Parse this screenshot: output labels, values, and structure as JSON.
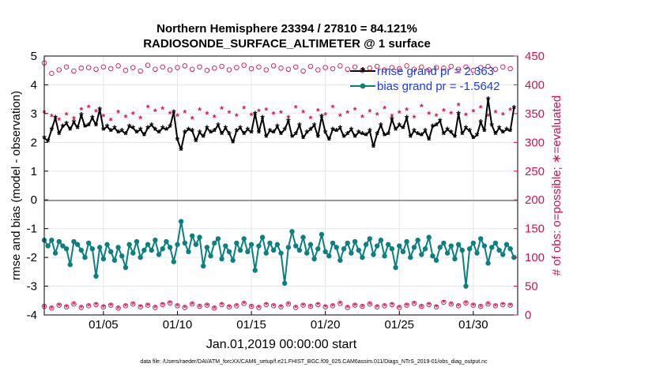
{
  "chart_data": {
    "type": "line",
    "title": "Northern Hemisphere 23394 / 27810 = 84.121%",
    "subtitle": "RADIOSONDE_SURFACE_ALTIMETER @ 1 surface",
    "xlabel": "Jan.01,2019 00:00:00 start",
    "ylabel": "rmse and bias (model - observation)",
    "ylabel_right": "# of obs: o=possible; ∗=evaluated",
    "footer": "data file: /Users/raeder/DAI/ATM_forcXX/CAM6_setup/f.e21.FHIST_BGC.f09_025.CAM6assim.011/Diags_NTrS_2019-01/obs_diag_output.nc",
    "xlim": [
      1,
      33
    ],
    "ylim": [
      -4,
      5
    ],
    "ylim_right": [
      0,
      450
    ],
    "x_ticks": [
      5,
      10,
      15,
      20,
      25,
      30
    ],
    "x_tick_labels": [
      "01/05",
      "01/10",
      "01/15",
      "01/20",
      "01/25",
      "01/30"
    ],
    "y_ticks": [
      -4,
      -3,
      -2,
      -1,
      0,
      1,
      2,
      3,
      4,
      5
    ],
    "y_tick_labels": [
      "-4",
      "-3",
      "-2",
      "-1",
      "0",
      "1",
      "2",
      "3",
      "4",
      "5"
    ],
    "y_ticks_right": [
      0,
      50,
      100,
      150,
      200,
      250,
      300,
      350,
      400,
      450
    ],
    "y_tick_labels_right": [
      "0",
      "50",
      "100",
      "150",
      "200",
      "250",
      "300",
      "350",
      "400",
      "450"
    ],
    "grid": true,
    "legend_position": "top-right",
    "colors": {
      "rmse": "#000000",
      "bias": "#0a8080",
      "obs": "#d6104f",
      "zero_line": "#9a9a9a",
      "legend_text": "#1a3cf0"
    },
    "series": [
      {
        "name": "rmse grand pr = 2.363",
        "axis": "left",
        "style": "line-star",
        "x": [
          1.0,
          1.25,
          1.5,
          1.75,
          2.0,
          2.25,
          2.5,
          2.75,
          3.0,
          3.25,
          3.5,
          3.75,
          4.0,
          4.25,
          4.5,
          4.75,
          5.0,
          5.25,
          5.5,
          5.75,
          6.0,
          6.25,
          6.5,
          6.75,
          7.0,
          7.25,
          7.5,
          7.75,
          8.0,
          8.25,
          8.5,
          8.75,
          9.0,
          9.25,
          9.5,
          9.75,
          10.0,
          10.25,
          10.5,
          10.75,
          11.0,
          11.25,
          11.5,
          11.75,
          12.0,
          12.25,
          12.5,
          12.75,
          13.0,
          13.25,
          13.5,
          13.75,
          14.0,
          14.25,
          14.5,
          14.75,
          15.0,
          15.25,
          15.5,
          15.75,
          16.0,
          16.25,
          16.5,
          16.75,
          17.0,
          17.25,
          17.5,
          17.75,
          18.0,
          18.25,
          18.5,
          18.75,
          19.0,
          19.25,
          19.5,
          19.75,
          20.0,
          20.25,
          20.5,
          20.75,
          21.0,
          21.25,
          21.5,
          21.75,
          22.0,
          22.25,
          22.5,
          22.75,
          23.0,
          23.25,
          23.5,
          23.75,
          24.0,
          24.25,
          24.5,
          24.75,
          25.0,
          25.25,
          25.5,
          25.75,
          26.0,
          26.25,
          26.5,
          26.75,
          27.0,
          27.25,
          27.5,
          27.75,
          28.0,
          28.25,
          28.5,
          28.75,
          29.0,
          29.25,
          29.5,
          29.75,
          30.0,
          30.25,
          30.5,
          30.75,
          31.0,
          31.25,
          31.5,
          31.75,
          32.0,
          32.25,
          32.5,
          32.75
        ],
        "values": [
          2.15,
          2.05,
          2.45,
          2.85,
          2.3,
          2.55,
          2.65,
          2.45,
          2.7,
          2.5,
          2.95,
          2.55,
          2.6,
          2.85,
          2.6,
          3.15,
          2.45,
          2.55,
          2.4,
          2.5,
          2.35,
          2.4,
          2.3,
          2.55,
          2.5,
          2.35,
          2.45,
          2.25,
          2.5,
          2.6,
          2.45,
          2.35,
          2.5,
          2.45,
          2.55,
          3.05,
          2.1,
          1.75,
          2.35,
          2.45,
          2.4,
          2.05,
          2.35,
          2.2,
          2.5,
          2.35,
          2.4,
          2.6,
          2.3,
          2.5,
          2.3,
          2.0,
          2.4,
          2.5,
          2.3,
          2.45,
          2.35,
          3.0,
          2.35,
          2.85,
          2.2,
          2.4,
          2.35,
          2.55,
          2.3,
          2.45,
          2.75,
          2.2,
          2.3,
          2.6,
          2.15,
          2.35,
          2.45,
          2.6,
          2.2,
          2.9,
          2.35,
          2.1,
          2.45,
          2.4,
          2.5,
          2.2,
          2.3,
          2.45,
          2.2,
          2.35,
          2.3,
          2.25,
          2.4,
          1.85,
          2.3,
          2.6,
          2.25,
          2.3,
          2.8,
          2.45,
          2.6,
          2.5,
          2.85,
          2.2,
          2.4,
          2.3,
          2.25,
          2.4,
          2.1,
          2.55,
          2.6,
          2.75,
          2.3,
          2.45,
          2.35,
          2.2,
          3.0,
          2.3,
          2.5,
          2.4,
          2.15,
          2.25,
          2.7,
          2.4,
          3.5,
          2.6,
          2.3,
          2.5,
          2.35,
          2.45,
          2.4,
          3.2
        ]
      },
      {
        "name": "bias grand pr = -1.5642",
        "axis": "left",
        "style": "line-dot",
        "x": [
          1.0,
          1.25,
          1.5,
          1.75,
          2.0,
          2.25,
          2.5,
          2.75,
          3.0,
          3.25,
          3.5,
          3.75,
          4.0,
          4.25,
          4.5,
          4.75,
          5.0,
          5.25,
          5.5,
          5.75,
          6.0,
          6.25,
          6.5,
          6.75,
          7.0,
          7.25,
          7.5,
          7.75,
          8.0,
          8.25,
          8.5,
          8.75,
          9.0,
          9.25,
          9.5,
          9.75,
          10.0,
          10.25,
          10.5,
          10.75,
          11.0,
          11.25,
          11.5,
          11.75,
          12.0,
          12.25,
          12.5,
          12.75,
          13.0,
          13.25,
          13.5,
          13.75,
          14.0,
          14.25,
          14.5,
          14.75,
          15.0,
          15.25,
          15.5,
          15.75,
          16.0,
          16.25,
          16.5,
          16.75,
          17.0,
          17.25,
          17.5,
          17.75,
          18.0,
          18.25,
          18.5,
          18.75,
          19.0,
          19.25,
          19.5,
          19.75,
          20.0,
          20.25,
          20.5,
          20.75,
          21.0,
          21.25,
          21.5,
          21.75,
          22.0,
          22.25,
          22.5,
          22.75,
          23.0,
          23.25,
          23.5,
          23.75,
          24.0,
          24.25,
          24.5,
          24.75,
          25.0,
          25.25,
          25.5,
          25.75,
          26.0,
          26.25,
          26.5,
          26.75,
          27.0,
          27.25,
          27.5,
          27.75,
          28.0,
          28.25,
          28.5,
          28.75,
          29.0,
          29.25,
          29.5,
          29.75,
          30.0,
          30.25,
          30.5,
          30.75,
          31.0,
          31.25,
          31.5,
          31.75,
          32.0,
          32.25,
          32.5,
          32.75
        ],
        "values": [
          -1.4,
          -1.6,
          -1.4,
          -1.85,
          -1.45,
          -1.6,
          -1.7,
          -2.25,
          -1.45,
          -1.55,
          -1.75,
          -2.0,
          -1.5,
          -1.7,
          -2.65,
          -1.65,
          -2.05,
          -1.55,
          -1.8,
          -2.1,
          -1.65,
          -1.95,
          -2.35,
          -1.55,
          -1.85,
          -1.45,
          -2.0,
          -1.75,
          -1.55,
          -1.75,
          -1.4,
          -1.9,
          -1.7,
          -1.45,
          -1.65,
          -2.15,
          -1.55,
          -0.75,
          -1.5,
          -1.8,
          -1.25,
          -1.55,
          -1.3,
          -2.3,
          -1.65,
          -1.95,
          -1.5,
          -1.35,
          -2.05,
          -1.6,
          -1.8,
          -2.1,
          -1.5,
          -1.75,
          -1.35,
          -1.8,
          -1.55,
          -2.45,
          -1.6,
          -1.3,
          -1.85,
          -1.5,
          -1.75,
          -1.55,
          -1.85,
          -2.9,
          -1.65,
          -1.1,
          -1.6,
          -1.75,
          -1.3,
          -1.85,
          -1.55,
          -2.05,
          -1.7,
          -1.2,
          -1.8,
          -1.95,
          -1.5,
          -1.65,
          -2.1,
          -1.7,
          -1.5,
          -1.85,
          -1.45,
          -1.75,
          -2.0,
          -1.55,
          -1.35,
          -1.9,
          -1.6,
          -1.4,
          -1.95,
          -1.55,
          -1.7,
          -2.35,
          -1.6,
          -1.8,
          -1.45,
          -2.0,
          -1.65,
          -1.4,
          -1.9,
          -1.7,
          -1.3,
          -1.95,
          -2.1,
          -1.65,
          -1.5,
          -1.85,
          -1.6,
          -2.05,
          -1.55,
          -1.75,
          -3.0,
          -1.7,
          -1.5,
          -1.85,
          -1.35,
          -1.6,
          -2.2,
          -1.65,
          -1.5,
          -1.75,
          -1.9,
          -1.55,
          -1.7,
          -2.0
        ]
      },
      {
        "name": "possible",
        "axis": "right",
        "style": "circle",
        "upper_x": [
          1.0,
          1.5,
          2.0,
          2.5,
          3.0,
          3.5,
          4.0,
          4.5,
          5.0,
          5.5,
          6.0,
          6.5,
          7.0,
          7.5,
          8.0,
          8.5,
          9.0,
          9.5,
          10.0,
          10.5,
          11.0,
          11.5,
          12.0,
          12.5,
          13.0,
          13.5,
          14.0,
          14.5,
          15.0,
          15.5,
          16.0,
          16.5,
          17.0,
          17.5,
          18.0,
          18.5,
          19.0,
          19.5,
          20.0,
          20.5,
          21.0,
          21.5,
          22.0,
          22.5,
          23.0,
          23.5,
          24.0,
          24.5,
          25.0,
          25.5,
          26.0,
          26.5,
          27.0,
          27.5,
          28.0,
          28.5,
          29.0,
          29.5,
          30.0,
          30.5,
          31.0,
          31.5,
          32.0,
          32.5
        ],
        "upper_values": [
          438,
          420,
          426,
          431,
          424,
          429,
          430,
          427,
          431,
          428,
          433,
          425,
          430,
          424,
          434,
          427,
          431,
          426,
          430,
          433,
          427,
          431,
          425,
          429,
          432,
          426,
          430,
          434,
          428,
          431,
          426,
          433,
          429,
          427,
          431,
          424,
          432,
          426,
          430,
          428,
          433,
          427,
          431,
          425,
          429,
          432,
          426,
          430,
          428,
          433,
          427,
          431,
          426,
          430,
          429,
          432,
          427,
          431,
          425,
          430,
          432,
          427,
          431,
          428
        ],
        "lower_x": [
          1.0,
          1.5,
          2.0,
          2.5,
          3.0,
          3.5,
          4.0,
          4.5,
          5.0,
          5.5,
          6.0,
          6.5,
          7.0,
          7.5,
          8.0,
          8.5,
          9.0,
          9.5,
          10.0,
          10.5,
          11.0,
          11.5,
          12.0,
          12.5,
          13.0,
          13.5,
          14.0,
          14.5,
          15.0,
          15.5,
          16.0,
          16.5,
          17.0,
          17.5,
          18.0,
          18.5,
          19.0,
          19.5,
          20.0,
          20.5,
          21.0,
          21.5,
          22.0,
          22.5,
          23.0,
          23.5,
          24.0,
          24.5,
          25.0,
          25.5,
          26.0,
          26.5,
          27.0,
          27.5,
          28.0,
          28.5,
          29.0,
          29.5,
          30.0,
          30.5,
          31.0,
          31.5,
          32.0,
          32.5
        ],
        "lower_values": [
          15,
          12,
          17,
          14,
          19,
          13,
          16,
          18,
          14,
          17,
          12,
          16,
          19,
          14,
          17,
          13,
          18,
          21,
          16,
          13,
          19,
          15,
          17,
          12,
          18,
          14,
          16,
          20,
          15,
          13,
          18,
          16,
          14,
          19,
          13,
          17,
          15,
          18,
          14,
          16,
          20,
          13,
          17,
          15,
          19,
          14,
          16,
          18,
          13,
          17,
          20,
          15,
          18,
          14,
          22,
          19,
          16,
          21,
          17,
          15,
          19,
          16,
          18,
          17
        ]
      },
      {
        "name": "evaluated",
        "axis": "right",
        "style": "star",
        "upper_x": [
          1.0,
          1.5,
          2.0,
          2.5,
          3.0,
          3.5,
          4.0,
          4.5,
          5.0,
          5.5,
          6.0,
          6.5,
          7.0,
          7.5,
          8.0,
          8.5,
          9.0,
          9.5,
          10.0,
          10.5,
          11.0,
          11.5,
          12.0,
          12.5,
          13.0,
          13.5,
          14.0,
          14.5,
          15.0,
          15.5,
          16.0,
          16.5,
          17.0,
          17.5,
          18.0,
          18.5,
          19.0,
          19.5,
          20.0,
          20.5,
          21.0,
          21.5,
          22.0,
          22.5,
          23.0,
          23.5,
          24.0,
          24.5,
          25.0,
          25.5,
          26.0,
          26.5,
          27.0,
          27.5,
          28.0,
          28.5,
          29.0,
          29.5,
          30.0,
          30.5,
          31.0,
          31.5,
          32.0,
          32.5
        ],
        "upper_values": [
          352,
          345,
          339,
          348,
          341,
          357,
          361,
          353,
          345,
          338,
          352,
          344,
          349,
          342,
          361,
          354,
          358,
          350,
          346,
          352,
          341,
          356,
          349,
          344,
          358,
          351,
          346,
          359,
          347,
          354,
          356,
          349,
          351,
          343,
          360,
          352,
          342,
          355,
          348,
          361,
          346,
          351,
          357,
          344,
          353,
          348,
          359,
          345,
          351,
          356,
          343,
          362,
          349,
          346,
          355,
          350,
          364,
          347,
          353,
          360,
          346,
          352,
          348,
          356
        ],
        "lower_values": [
          15,
          12,
          17,
          14,
          19,
          13,
          16,
          18,
          14,
          17,
          12,
          16,
          19,
          14,
          17,
          13,
          18,
          21,
          16,
          13,
          19,
          15,
          17,
          12,
          18,
          14,
          16,
          20,
          15,
          13,
          18,
          16,
          14,
          19,
          13,
          17,
          15,
          18,
          14,
          16,
          20,
          13,
          17,
          15,
          19,
          14,
          16,
          18,
          13,
          17,
          20,
          15,
          18,
          14,
          22,
          19,
          16,
          21,
          17,
          15,
          19,
          16,
          18,
          17
        ]
      }
    ]
  }
}
